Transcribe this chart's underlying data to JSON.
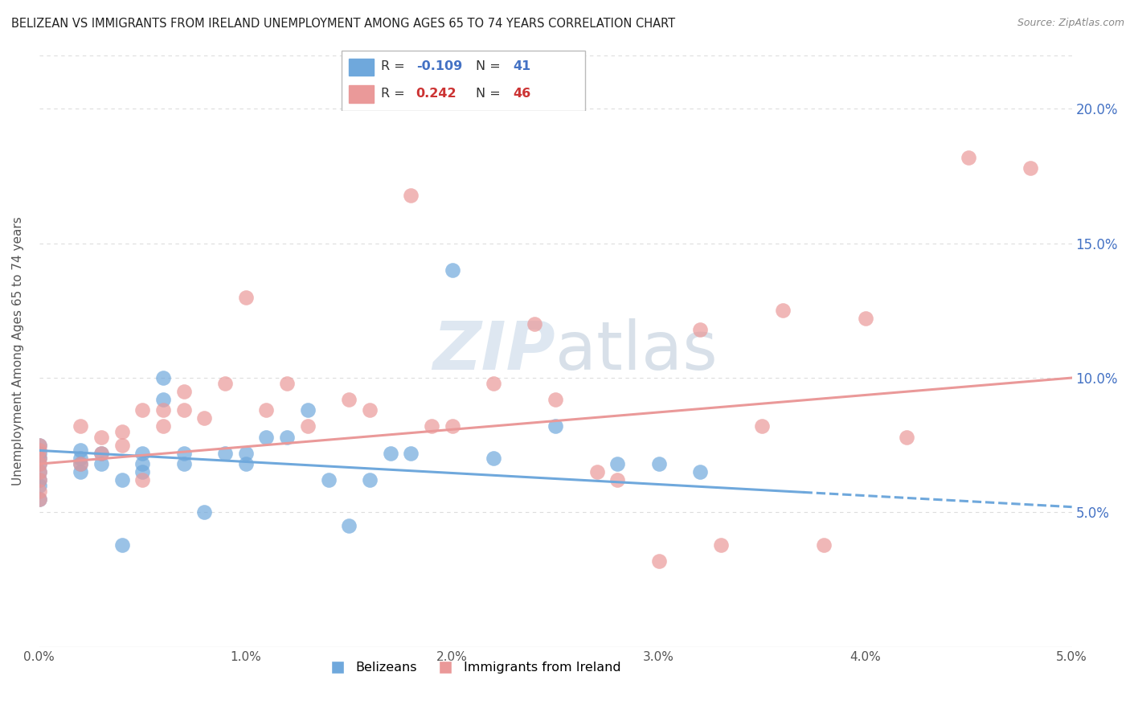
{
  "title": "BELIZEAN VS IMMIGRANTS FROM IRELAND UNEMPLOYMENT AMONG AGES 65 TO 74 YEARS CORRELATION CHART",
  "source": "Source: ZipAtlas.com",
  "ylabel": "Unemployment Among Ages 65 to 74 years",
  "xlim": [
    0.0,
    0.05
  ],
  "ylim": [
    0.0,
    0.22
  ],
  "xticks": [
    0.0,
    0.01,
    0.02,
    0.03,
    0.04,
    0.05
  ],
  "xtick_labels": [
    "0.0%",
    "1.0%",
    "2.0%",
    "3.0%",
    "4.0%",
    "5.0%"
  ],
  "ytick_labels": [
    "5.0%",
    "10.0%",
    "15.0%",
    "20.0%"
  ],
  "ytick_values": [
    0.05,
    0.1,
    0.15,
    0.2
  ],
  "blue_color": "#6fa8dc",
  "pink_color": "#ea9999",
  "blue_R": -0.109,
  "blue_N": 41,
  "pink_R": 0.242,
  "pink_N": 46,
  "legend_label_blue": "Belizeans",
  "legend_label_pink": "Immigrants from Ireland",
  "blue_scatter_x": [
    0.0,
    0.0,
    0.0,
    0.0,
    0.0,
    0.0,
    0.0,
    0.0,
    0.002,
    0.002,
    0.002,
    0.002,
    0.003,
    0.003,
    0.004,
    0.004,
    0.005,
    0.005,
    0.005,
    0.006,
    0.006,
    0.007,
    0.007,
    0.008,
    0.009,
    0.01,
    0.01,
    0.011,
    0.012,
    0.013,
    0.014,
    0.016,
    0.017,
    0.018,
    0.02,
    0.022,
    0.025,
    0.028,
    0.03,
    0.032,
    0.015
  ],
  "blue_scatter_y": [
    0.055,
    0.06,
    0.062,
    0.065,
    0.068,
    0.07,
    0.072,
    0.075,
    0.065,
    0.068,
    0.07,
    0.073,
    0.068,
    0.072,
    0.062,
    0.038,
    0.065,
    0.068,
    0.072,
    0.092,
    0.1,
    0.068,
    0.072,
    0.05,
    0.072,
    0.068,
    0.072,
    0.078,
    0.078,
    0.088,
    0.062,
    0.062,
    0.072,
    0.072,
    0.14,
    0.07,
    0.082,
    0.068,
    0.068,
    0.065,
    0.045
  ],
  "pink_scatter_x": [
    0.0,
    0.0,
    0.0,
    0.0,
    0.0,
    0.0,
    0.0,
    0.0,
    0.002,
    0.002,
    0.003,
    0.003,
    0.004,
    0.004,
    0.005,
    0.005,
    0.006,
    0.006,
    0.007,
    0.007,
    0.008,
    0.009,
    0.01,
    0.011,
    0.012,
    0.013,
    0.015,
    0.016,
    0.018,
    0.02,
    0.022,
    0.025,
    0.028,
    0.03,
    0.032,
    0.035,
    0.038,
    0.04,
    0.042,
    0.045,
    0.048,
    0.019,
    0.024,
    0.027,
    0.033,
    0.036
  ],
  "pink_scatter_y": [
    0.055,
    0.058,
    0.062,
    0.065,
    0.068,
    0.07,
    0.073,
    0.075,
    0.068,
    0.082,
    0.072,
    0.078,
    0.075,
    0.08,
    0.062,
    0.088,
    0.082,
    0.088,
    0.088,
    0.095,
    0.085,
    0.098,
    0.13,
    0.088,
    0.098,
    0.082,
    0.092,
    0.088,
    0.168,
    0.082,
    0.098,
    0.092,
    0.062,
    0.032,
    0.118,
    0.082,
    0.038,
    0.122,
    0.078,
    0.182,
    0.178,
    0.082,
    0.12,
    0.065,
    0.038,
    0.125
  ],
  "blue_line_x": [
    0.0,
    0.05
  ],
  "blue_line_y": [
    0.073,
    0.052
  ],
  "pink_line_x": [
    0.0,
    0.05
  ],
  "pink_line_y": [
    0.068,
    0.1
  ],
  "background_color": "#ffffff",
  "grid_color": "#dddddd",
  "watermark_text": "ZIP atlas",
  "watermark_color": "#c8d8e8",
  "right_tick_color": "#4472c4",
  "title_color": "#222222",
  "source_color": "#888888",
  "axis_label_color": "#555555"
}
